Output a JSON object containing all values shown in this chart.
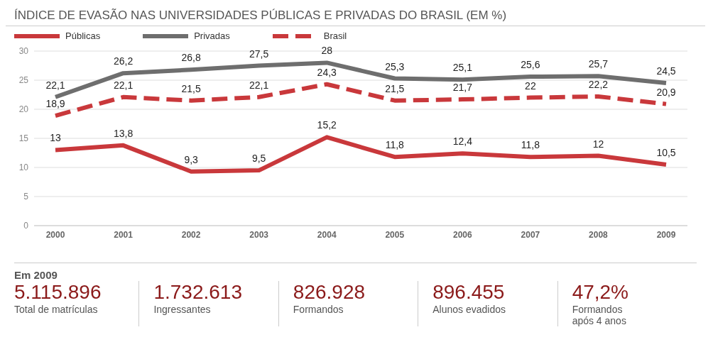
{
  "chart_data": {
    "type": "line",
    "title": "ÍNDICE DE EVASÃO NAS UNIVERSIDADES PÚBLICAS E PRIVADAS DO BRASIL (EM %)",
    "categories": [
      "2000",
      "2001",
      "2002",
      "2003",
      "2004",
      "2005",
      "2006",
      "2007",
      "2008",
      "2009"
    ],
    "series": [
      {
        "name": "Públicas",
        "color": "#c9383b",
        "line_style": "solid",
        "values": [
          13,
          13.8,
          9.3,
          9.5,
          15.2,
          11.8,
          12.4,
          11.8,
          12,
          10.5
        ],
        "value_labels": [
          "13",
          "13,8",
          "9,3",
          "9,5",
          "15,2",
          "11,8",
          "12,4",
          "11,8",
          "12",
          "10,5"
        ]
      },
      {
        "name": "Privadas",
        "color": "#6e6e6e",
        "line_style": "solid",
        "values": [
          22.1,
          26.2,
          26.8,
          27.5,
          28,
          25.3,
          25.1,
          25.6,
          25.7,
          24.5
        ],
        "value_labels": [
          "22,1",
          "26,2",
          "26,8",
          "27,5",
          "28",
          "25,3",
          "25,1",
          "25,6",
          "25,7",
          "24,5"
        ]
      },
      {
        "name": "Brasil",
        "color": "#c9383b",
        "line_style": "dashed",
        "values": [
          18.9,
          22.1,
          21.5,
          22.1,
          24.3,
          21.5,
          21.7,
          22,
          22.2,
          20.9
        ],
        "value_labels": [
          "18,9",
          "22,1",
          "21,5",
          "22,1",
          "24,3",
          "21,5",
          "21,7",
          "22",
          "22,2",
          "20,9"
        ]
      }
    ],
    "ylim": [
      0,
      30
    ],
    "yticks": [
      0,
      5,
      10,
      15,
      20,
      25,
      30
    ],
    "grid": "y",
    "legend": "top left",
    "annotations": [
      "Em 2009",
      "5.115.896",
      "Total de matrículas",
      "1.732.613",
      "Ingressantes",
      "826.928",
      "Formandos",
      "896.455",
      "Alunos evadidos",
      "47,2%",
      "Formandos após 4 anos"
    ]
  }
}
